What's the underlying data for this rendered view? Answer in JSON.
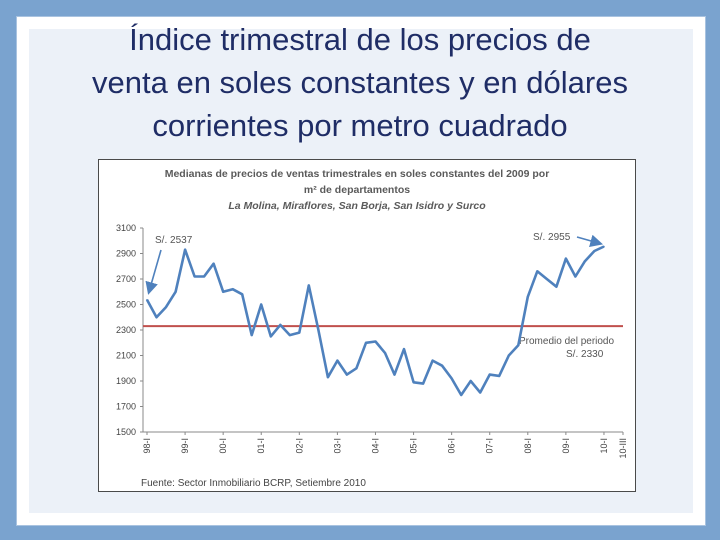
{
  "slide": {
    "title_lines": [
      "Índice trimestral de los precios de",
      "venta en soles constantes y en dólares",
      "corrientes por metro cuadrado"
    ]
  },
  "colors": {
    "series": "#4f81bd",
    "average": "#c0504d",
    "arrow": "#4f81bd",
    "frame_bg": "#7aa3cf"
  },
  "chart_data": {
    "type": "line",
    "title_lines": [
      "Medianas de precios de ventas trimestrales en soles constantes del 2009 por",
      "m² de departamentos"
    ],
    "subtitle": "La Molina, Miraflores, San Borja, San Isidro y Surco",
    "ylim": [
      1500,
      3100
    ],
    "yticks": [
      1500,
      1700,
      1900,
      2100,
      2300,
      2500,
      2700,
      2900,
      3100
    ],
    "xtick_labels": [
      "98-I",
      "99-I",
      "00-I",
      "01-I",
      "02-I",
      "03-I",
      "04-I",
      "05-I",
      "06-I",
      "07-I",
      "08-I",
      "09-I",
      "10-I",
      "10-III"
    ],
    "xtick_quarter_index": [
      0,
      4,
      8,
      12,
      16,
      20,
      24,
      28,
      32,
      36,
      40,
      44,
      48,
      50
    ],
    "series": [
      {
        "values": [
          2537,
          2400,
          2480,
          2600,
          2930,
          2720,
          2720,
          2820,
          2600,
          2620,
          2580,
          2260,
          2500,
          2250,
          2340,
          2260,
          2280,
          2650,
          2300,
          1930,
          2060,
          1950,
          2000,
          2200,
          2210,
          2120,
          1950,
          2150,
          1890,
          1880,
          2060,
          2020,
          1920,
          1790,
          1900,
          1810,
          1950,
          1940,
          2100,
          2180,
          2560,
          2760,
          2700,
          2640,
          2860,
          2720,
          2840,
          2920,
          2955
        ]
      }
    ],
    "average": {
      "value": 2330,
      "label_lines": [
        "Promedio del periodo",
        "S/. 2330"
      ]
    },
    "annotations": [
      {
        "text": "S/. 2537",
        "quarter_index": 0,
        "value": 2537
      },
      {
        "text": "S/. 2955",
        "quarter_index": 48,
        "value": 2955
      }
    ],
    "source": "Fuente: Sector Inmobiliario BCRP, Setiembre 2010",
    "grid": false,
    "legend": "none"
  }
}
